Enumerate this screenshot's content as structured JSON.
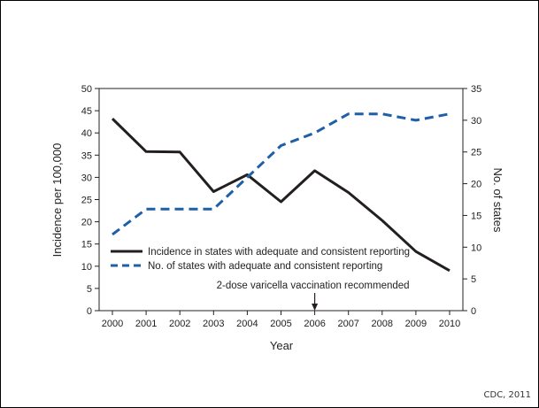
{
  "source_note": "CDC, 2011",
  "chart_data": {
    "type": "line",
    "xlabel": "Year",
    "ylabel_left": "Incidence per 100,000",
    "ylabel_right": "No. of states",
    "x": [
      2000,
      2001,
      2002,
      2003,
      2004,
      2005,
      2006,
      2007,
      2008,
      2009,
      2010
    ],
    "ylim_left": [
      0,
      50
    ],
    "yticks_left": [
      0,
      5,
      10,
      15,
      20,
      25,
      30,
      35,
      40,
      45,
      50
    ],
    "ylim_right": [
      0,
      35
    ],
    "yticks_right": [
      0,
      5,
      10,
      15,
      20,
      25,
      30,
      35
    ],
    "grid": false,
    "legend_position": "lower-left",
    "series": [
      {
        "name": "Incidence in states with adequate and consistent reporting",
        "axis": "left",
        "style": "solid",
        "color": "#231f20",
        "values": [
          43.2,
          35.8,
          35.7,
          26.8,
          30.6,
          24.5,
          31.5,
          26.6,
          20.3,
          13.3,
          9.0
        ]
      },
      {
        "name": "No. of states with adequate and consistent reporting",
        "axis": "right",
        "style": "dashed",
        "color": "#1f5fa8",
        "values": [
          12,
          16,
          16,
          16,
          21,
          26,
          28,
          31,
          31,
          30,
          31
        ]
      }
    ],
    "annotations": [
      {
        "text": "2-dose varicella vaccination recommended",
        "x": 2006
      }
    ]
  }
}
